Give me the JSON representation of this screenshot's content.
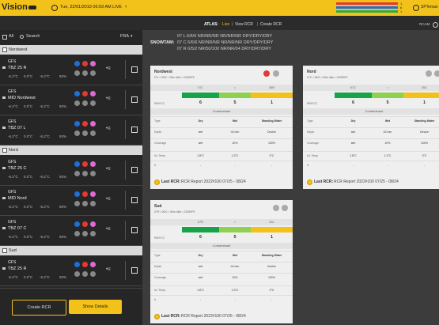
{
  "topbar": {
    "logo": "Vision",
    "datetime": "Tue, 22/01/2019 06:59 AM LIVE",
    "user": "SPTeman",
    "status": [
      {
        "color": "#e53935",
        "count": "1"
      },
      {
        "color": "#1e6fd9",
        "count": "6"
      },
      {
        "color": "#2eaa4f",
        "count": "1"
      }
    ]
  },
  "subbar": {
    "atlas_label": "ATLAS:",
    "atlas_status": "Live",
    "links": [
      "View RCR",
      "Create RCR"
    ],
    "right": "RCAM"
  },
  "sidebar": {
    "all": "All",
    "search": "Search",
    "region": "FRA",
    "groups": [
      {
        "name": "Nordwest",
        "items": [
          {
            "model": "GFS",
            "name": "TBZ 25 R",
            "readings": [
              "-6.2°C",
              "0.0°C",
              "-6.2°C",
              "93%"
            ]
          },
          {
            "model": "GFS",
            "name": "MID Nordwest",
            "readings": [
              "-6.2°C",
              "0.0°C",
              "-6.2°C",
              "93%"
            ]
          },
          {
            "model": "GFS",
            "name": "TBZ 07 L",
            "readings": [
              "-6.2°C",
              "0.0°C",
              "-6.2°C",
              "93%"
            ]
          }
        ]
      },
      {
        "name": "Nord",
        "items": [
          {
            "model": "GFS",
            "name": "TBZ 25 C",
            "readings": [
              "-6.2°C",
              "0.0°C",
              "-6.2°C",
              "93%"
            ]
          },
          {
            "model": "GFS",
            "name": "MID Nord",
            "readings": [
              "-6.2°C",
              "0.0°C",
              "-6.2°C",
              "93%"
            ]
          },
          {
            "model": "GFS",
            "name": "TBZ 07 C",
            "readings": [
              "-6.2°C",
              "0.0°C",
              "-6.2°C",
              "93%"
            ]
          }
        ]
      },
      {
        "name": "Sud",
        "items": [
          {
            "model": "GFS",
            "name": "TBZ 25 R",
            "readings": [
              "-6.2°C",
              "0.0°C",
              "-6.2°C",
              "93%"
            ]
          }
        ]
      }
    ],
    "buttons": [
      "Create RCR",
      "Show Details"
    ]
  },
  "snowtam": {
    "label": "SNOWTAM:",
    "lines": [
      "07 L 6/6/6 NR/NR/NR NR/NR/NR DRY/DRY/DRY",
      "07 C 6/6/6 NR/NR/NR NR/NR/NR DRY/DRY/DRY",
      "07 R 6/5/2 NR/50/100 NR/NR/04 DRY/DRY/DRY"
    ]
  },
  "cards": [
    {
      "title": "Nordwest",
      "subtitle": "07L • 06/C • 06m dike • 22050FE",
      "runway": [
        "07L",
        "•",
        "25R"
      ],
      "rwycc_label": "RWYCC",
      "rwycc": [
        "6",
        "5",
        "1"
      ],
      "contaminant": "Contaminant",
      "table": [
        [
          "Type",
          "Dry",
          "Wet",
          "Standing Water"
        ],
        [
          "Depth",
          "wet",
          "02 mm",
          "Device"
        ],
        [
          "Coverage",
          "wet",
          "10%",
          "100%"
        ],
        [
          "Ini. Temp",
          "1.8°C",
          "1.3°C",
          "0°C"
        ],
        [
          "Ir.",
          "-",
          "-",
          "-"
        ]
      ],
      "last_label": "Last RCR:",
      "last_value": "RCR Report 2022#100 07/25 - 08/24"
    },
    {
      "title": "Nord",
      "subtitle": "07C • 06/C • 06m dike • 22050FE",
      "runway": [
        "07C",
        "•",
        "25C"
      ],
      "rwycc_label": "RWYCC",
      "rwycc": [
        "6",
        "5",
        "1"
      ],
      "contaminant": "Contaminant",
      "table": [
        [
          "Type",
          "Dry",
          "Wet",
          "Standing Water"
        ],
        [
          "Depth",
          "wet",
          "02 mm",
          "Device"
        ],
        [
          "Coverage",
          "wet",
          "10%",
          "100%"
        ],
        [
          "Ini. Temp",
          "1.8°C",
          "1.3°C",
          "0°C"
        ],
        [
          "Ir.",
          "-",
          "-",
          "-"
        ]
      ],
      "last_label": "Last RCR:",
      "last_value": "RCR Report 2022#100 07/25 - 08/24"
    },
    {
      "title": "Sud",
      "subtitle": "07R • 06/C • 06m dike • 22050FE",
      "runway": [
        "07R",
        "•",
        "25L"
      ],
      "rwycc_label": "RWYCC",
      "rwycc": [
        "6",
        "5",
        "1"
      ],
      "contaminant": "Contaminant",
      "table": [
        [
          "Type",
          "Dry",
          "Wet",
          "Standing Water"
        ],
        [
          "Depth",
          "wet",
          "02 mm",
          "Device"
        ],
        [
          "Coverage",
          "wet",
          "10%",
          "100%"
        ],
        [
          "Ini. Temp",
          "1.8°C",
          "1.3°C",
          "0°C"
        ],
        [
          "Ir.",
          "-",
          "-",
          "-"
        ]
      ],
      "last_label": "Last RCR:",
      "last_value": "RCR Report 2022#100 07/25 - 08/24"
    }
  ]
}
